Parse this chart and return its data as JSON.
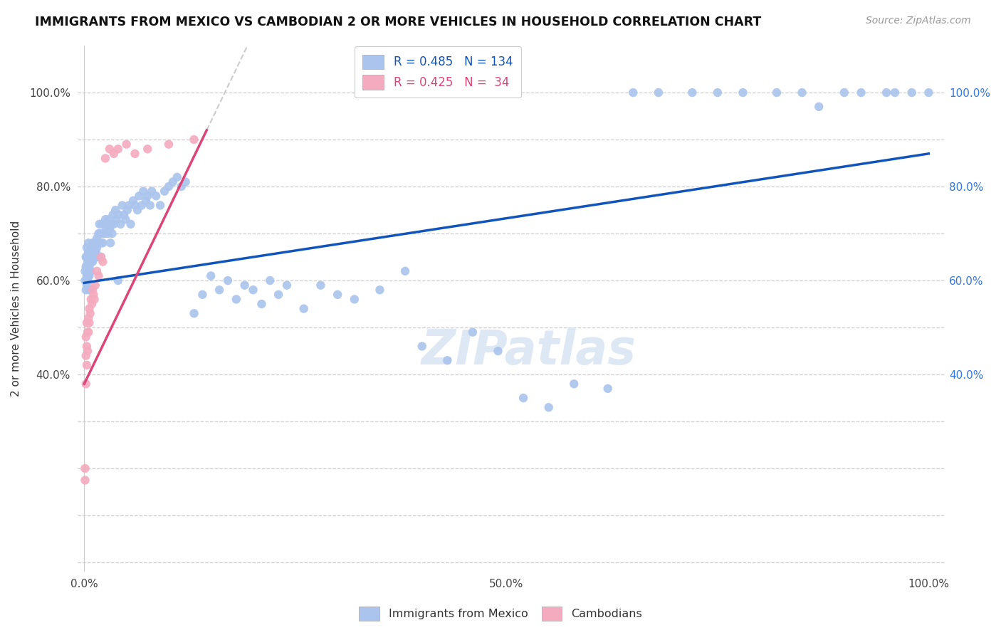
{
  "title": "IMMIGRANTS FROM MEXICO VS CAMBODIAN 2 OR MORE VEHICLES IN HOUSEHOLD CORRELATION CHART",
  "source": "Source: ZipAtlas.com",
  "ylabel": "2 or more Vehicles in Household",
  "x_tick_positions": [
    0.0,
    0.1,
    0.2,
    0.3,
    0.4,
    0.5,
    0.6,
    0.7,
    0.8,
    0.9,
    1.0
  ],
  "x_tick_labels": [
    "0.0%",
    "",
    "",
    "",
    "",
    "50.0%",
    "",
    "",
    "",
    "",
    "100.0%"
  ],
  "y_tick_positions": [
    0.0,
    0.1,
    0.2,
    0.3,
    0.4,
    0.5,
    0.6,
    0.7,
    0.8,
    0.9,
    1.0
  ],
  "y_tick_labels_left": [
    "",
    "",
    "",
    "",
    "40.0%",
    "",
    "60.0%",
    "",
    "80.0%",
    "",
    "100.0%"
  ],
  "y_tick_labels_right": [
    "",
    "",
    "",
    "",
    "40.0%",
    "",
    "60.0%",
    "",
    "80.0%",
    "",
    "100.0%"
  ],
  "legend_mexico_label": "Immigrants from Mexico",
  "legend_cambodian_label": "Cambodians",
  "mexico_R": 0.485,
  "mexico_N": 134,
  "cambodian_R": 0.425,
  "cambodian_N": 34,
  "mexico_color": "#aac4ed",
  "cambodian_color": "#f4aabf",
  "mexico_line_color": "#1155bb",
  "cambodian_line_color": "#dd4477",
  "watermark": "ZIPatlas",
  "background_color": "#ffffff",
  "mexico_scatter_x": [
    0.001,
    0.001,
    0.002,
    0.002,
    0.002,
    0.003,
    0.003,
    0.003,
    0.003,
    0.004,
    0.004,
    0.004,
    0.005,
    0.005,
    0.005,
    0.005,
    0.006,
    0.006,
    0.006,
    0.006,
    0.007,
    0.007,
    0.007,
    0.008,
    0.008,
    0.008,
    0.009,
    0.009,
    0.01,
    0.01,
    0.01,
    0.011,
    0.011,
    0.012,
    0.012,
    0.013,
    0.013,
    0.014,
    0.014,
    0.015,
    0.015,
    0.016,
    0.016,
    0.017,
    0.018,
    0.018,
    0.019,
    0.02,
    0.02,
    0.021,
    0.022,
    0.022,
    0.023,
    0.024,
    0.025,
    0.026,
    0.027,
    0.028,
    0.029,
    0.03,
    0.031,
    0.032,
    0.033,
    0.034,
    0.035,
    0.037,
    0.038,
    0.04,
    0.041,
    0.043,
    0.045,
    0.047,
    0.049,
    0.051,
    0.053,
    0.055,
    0.058,
    0.06,
    0.063,
    0.065,
    0.068,
    0.07,
    0.073,
    0.075,
    0.078,
    0.08,
    0.085,
    0.09,
    0.095,
    0.1,
    0.105,
    0.11,
    0.115,
    0.12,
    0.13,
    0.14,
    0.15,
    0.16,
    0.17,
    0.18,
    0.19,
    0.2,
    0.21,
    0.22,
    0.23,
    0.24,
    0.26,
    0.28,
    0.3,
    0.32,
    0.35,
    0.38,
    0.4,
    0.43,
    0.46,
    0.49,
    0.52,
    0.55,
    0.58,
    0.62,
    0.65,
    0.68,
    0.72,
    0.75,
    0.78,
    0.82,
    0.85,
    0.87,
    0.9,
    0.92,
    0.95,
    0.96,
    0.98,
    1.0
  ],
  "mexico_scatter_y": [
    0.62,
    0.6,
    0.65,
    0.63,
    0.58,
    0.67,
    0.65,
    0.61,
    0.59,
    0.64,
    0.62,
    0.6,
    0.68,
    0.66,
    0.64,
    0.61,
    0.65,
    0.63,
    0.61,
    0.58,
    0.66,
    0.64,
    0.62,
    0.67,
    0.65,
    0.62,
    0.66,
    0.64,
    0.68,
    0.66,
    0.64,
    0.67,
    0.65,
    0.68,
    0.66,
    0.67,
    0.65,
    0.68,
    0.66,
    0.69,
    0.67,
    0.68,
    0.65,
    0.7,
    0.72,
    0.68,
    0.7,
    0.65,
    0.68,
    0.72,
    0.7,
    0.68,
    0.72,
    0.7,
    0.73,
    0.71,
    0.72,
    0.7,
    0.73,
    0.71,
    0.68,
    0.72,
    0.7,
    0.74,
    0.72,
    0.75,
    0.73,
    0.6,
    0.74,
    0.72,
    0.76,
    0.74,
    0.73,
    0.75,
    0.76,
    0.72,
    0.77,
    0.76,
    0.75,
    0.78,
    0.76,
    0.79,
    0.77,
    0.78,
    0.76,
    0.79,
    0.78,
    0.76,
    0.79,
    0.8,
    0.81,
    0.82,
    0.8,
    0.81,
    0.53,
    0.57,
    0.61,
    0.58,
    0.6,
    0.56,
    0.59,
    0.58,
    0.55,
    0.6,
    0.57,
    0.59,
    0.54,
    0.59,
    0.57,
    0.56,
    0.58,
    0.62,
    0.46,
    0.43,
    0.49,
    0.45,
    0.35,
    0.33,
    0.38,
    0.37,
    1.0,
    1.0,
    1.0,
    1.0,
    1.0,
    1.0,
    1.0,
    0.97,
    1.0,
    1.0,
    1.0,
    1.0,
    1.0,
    1.0
  ],
  "cambodian_scatter_x": [
    0.001,
    0.001,
    0.002,
    0.002,
    0.002,
    0.003,
    0.003,
    0.003,
    0.004,
    0.004,
    0.005,
    0.005,
    0.006,
    0.006,
    0.007,
    0.008,
    0.009,
    0.01,
    0.011,
    0.012,
    0.013,
    0.015,
    0.017,
    0.02,
    0.022,
    0.025,
    0.03,
    0.035,
    0.04,
    0.05,
    0.06,
    0.075,
    0.1,
    0.13
  ],
  "cambodian_scatter_y": [
    0.2,
    0.175,
    0.48,
    0.44,
    0.38,
    0.51,
    0.46,
    0.42,
    0.49,
    0.45,
    0.52,
    0.49,
    0.54,
    0.51,
    0.53,
    0.56,
    0.55,
    0.58,
    0.57,
    0.56,
    0.59,
    0.62,
    0.61,
    0.65,
    0.64,
    0.86,
    0.88,
    0.87,
    0.88,
    0.89,
    0.87,
    0.88,
    0.89,
    0.9
  ],
  "mexico_line_x0": 0.0,
  "mexico_line_x1": 1.0,
  "mexico_line_y0": 0.595,
  "mexico_line_y1": 0.87,
  "cambodian_line_x0": 0.0,
  "cambodian_line_x1": 0.145,
  "cambodian_line_y0": 0.38,
  "cambodian_line_y1": 0.92
}
